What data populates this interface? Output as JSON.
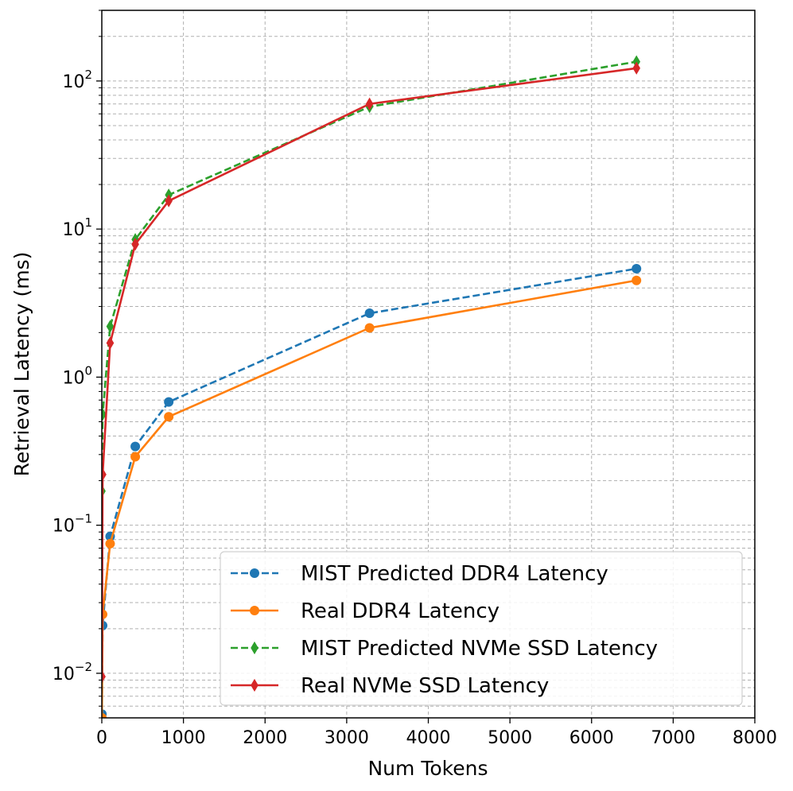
{
  "chart_data": {
    "type": "line",
    "title": "",
    "xlabel": "Num Tokens",
    "ylabel": "Retrieval Latency (ms)",
    "xlim": [
      0,
      8000
    ],
    "ylim": [
      0.005,
      300
    ],
    "yscale": "log",
    "grid": "major and minor, dashed, gray",
    "legend_position": "lower-right",
    "x_ticks": [
      0,
      1000,
      2000,
      3000,
      4000,
      5000,
      6000,
      7000,
      8000
    ],
    "x_tick_labels": [
      "0",
      "1000",
      "2000",
      "3000",
      "4000",
      "5000",
      "6000",
      "7000",
      "8000"
    ],
    "y_ticks": [
      0.01,
      0.1,
      1,
      10,
      100
    ],
    "y_tick_labels": [
      {
        "base": "10",
        "exp": "−2"
      },
      {
        "base": "10",
        "exp": "−1"
      },
      {
        "base": "10",
        "exp": "0"
      },
      {
        "base": "10",
        "exp": "1"
      },
      {
        "base": "10",
        "exp": "2"
      }
    ],
    "series": [
      {
        "name": "MIST Predicted DDR4 Latency",
        "color": "#1f77b4",
        "linestyle": "dashed",
        "marker": "circle",
        "x": [
          1,
          10,
          102,
          410,
          820,
          3280,
          6550
        ],
        "y": [
          0.0053,
          0.021,
          0.084,
          0.34,
          0.68,
          2.7,
          5.4
        ]
      },
      {
        "name": "Real DDR4 Latency",
        "color": "#ff7f0e",
        "linestyle": "solid",
        "marker": "circle",
        "x": [
          1,
          10,
          102,
          410,
          820,
          3280,
          6550
        ],
        "y": [
          0.005,
          0.025,
          0.075,
          0.29,
          0.54,
          2.15,
          4.5
        ]
      },
      {
        "name": "MIST Predicted NVMe SSD Latency",
        "color": "#2ca02c",
        "linestyle": "dashed",
        "marker": "diamond",
        "x": [
          1,
          10,
          102,
          410,
          820,
          3280,
          6550
        ],
        "y": [
          0.17,
          0.56,
          2.2,
          8.5,
          17,
          67,
          135
        ]
      },
      {
        "name": "Real NVMe SSD Latency",
        "color": "#d62728",
        "linestyle": "solid",
        "marker": "diamond",
        "x": [
          1,
          10,
          102,
          410,
          820,
          3280,
          6550
        ],
        "y": [
          0.0095,
          0.22,
          1.7,
          7.9,
          15.5,
          70,
          122
        ]
      }
    ]
  }
}
